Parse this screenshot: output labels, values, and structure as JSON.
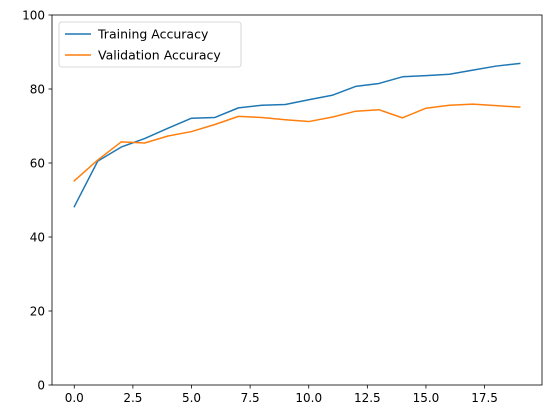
{
  "chart_data": {
    "type": "line",
    "title": "",
    "xlabel": "",
    "ylabel": "",
    "xlim": [
      -0.95,
      19.95
    ],
    "ylim": [
      0,
      100
    ],
    "x_ticks": [
      0,
      2.5,
      5,
      7.5,
      10,
      12.5,
      15,
      17.5
    ],
    "x_tick_labels": [
      "0.0",
      "2.5",
      "5.0",
      "7.5",
      "10.0",
      "12.5",
      "15.0",
      "17.5"
    ],
    "y_ticks": [
      0,
      20,
      40,
      60,
      80,
      100
    ],
    "y_tick_labels": [
      "0",
      "20",
      "40",
      "60",
      "80",
      "100"
    ],
    "grid": false,
    "legend_position": "upper-left",
    "x": [
      0,
      1,
      2,
      3,
      4,
      5,
      6,
      7,
      8,
      9,
      10,
      11,
      12,
      13,
      14,
      15,
      16,
      17,
      18,
      19
    ],
    "series": [
      {
        "name": "Training Accuracy",
        "color": "#1f77b4",
        "values": [
          48.2,
          60.5,
          64.3,
          66.6,
          69.4,
          72.1,
          72.3,
          74.9,
          75.6,
          75.8,
          77.1,
          78.3,
          80.7,
          81.5,
          83.3,
          83.6,
          84.0,
          85.1,
          86.2,
          86.9
        ]
      },
      {
        "name": "Validation Accuracy",
        "color": "#ff7f0e",
        "values": [
          55.2,
          60.8,
          65.7,
          65.4,
          67.3,
          68.5,
          70.4,
          72.6,
          72.3,
          71.7,
          71.2,
          72.4,
          74.0,
          74.4,
          72.2,
          74.8,
          75.6,
          75.9,
          75.5,
          75.1
        ]
      }
    ]
  }
}
